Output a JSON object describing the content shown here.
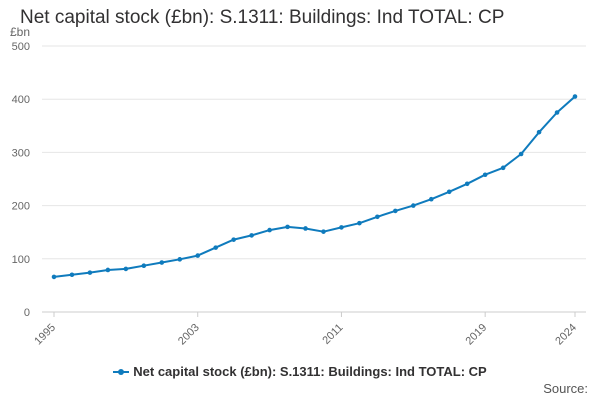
{
  "chart_data": {
    "type": "line",
    "title": "Net capital stock (£bn): S.1311: Buildings: Ind TOTAL: CP",
    "ylabel": "£bn",
    "xlabel": "",
    "ylim": [
      0,
      500
    ],
    "yticks": [
      0,
      100,
      200,
      300,
      400,
      500
    ],
    "xticks": [
      "1995",
      "2003",
      "2011",
      "2019",
      "2024"
    ],
    "grid": true,
    "legend_position": "bottom",
    "x": [
      "1995",
      "1996",
      "1997",
      "1998",
      "1999",
      "2000",
      "2001",
      "2002",
      "2003",
      "2004",
      "2005",
      "2006",
      "2007",
      "2008",
      "2009",
      "2010",
      "2011",
      "2012",
      "2013",
      "2014",
      "2015",
      "2016",
      "2017",
      "2018",
      "2019",
      "2020",
      "2021",
      "2022",
      "2023",
      "2024"
    ],
    "series": [
      {
        "name": "Net capital stock (£bn): S.1311: Buildings: Ind TOTAL: CP",
        "color": "#0f7bbd",
        "values": [
          66,
          70,
          74,
          79,
          81,
          87,
          93,
          99,
          106,
          121,
          136,
          144,
          154,
          160,
          157,
          151,
          159,
          167,
          179,
          190,
          200,
          212,
          226,
          241,
          258,
          271,
          297,
          338,
          375,
          405
        ]
      }
    ]
  },
  "source_label": "Source:"
}
